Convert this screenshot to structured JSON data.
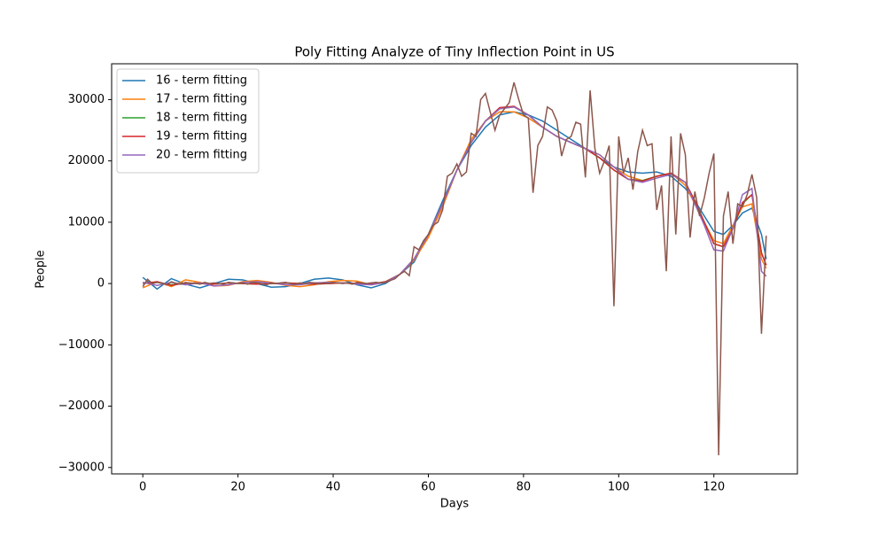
{
  "chart_data": {
    "type": "line",
    "title": "Poly Fitting Analyze of Tiny Inflection Point in US",
    "x_label": "Days",
    "y_label": "People",
    "x": [
      0,
      3,
      6,
      9,
      12,
      15,
      18,
      21,
      24,
      27,
      30,
      33,
      36,
      39,
      42,
      45,
      48,
      51,
      54,
      57,
      60,
      63,
      66,
      69,
      72,
      75,
      78,
      81,
      84,
      87,
      90,
      93,
      96,
      99,
      102,
      105,
      108,
      111,
      114,
      116,
      118,
      120,
      122,
      124,
      126,
      128,
      130,
      131
    ],
    "series": [
      {
        "name": "16 - term fitting",
        "color": "#1f77b4",
        "values": [
          1000,
          -900,
          800,
          -100,
          -700,
          0,
          700,
          600,
          0,
          -600,
          -500,
          0,
          700,
          900,
          600,
          -200,
          -700,
          0,
          1500,
          3500,
          8000,
          13500,
          18500,
          22500,
          25500,
          27500,
          28000,
          27500,
          26500,
          25000,
          23500,
          22000,
          20500,
          19000,
          18200,
          18000,
          18200,
          17500,
          15500,
          13500,
          11000,
          8500,
          8000,
          9500,
          11500,
          12300,
          8000,
          4000
        ]
      },
      {
        "name": "17 - term fitting",
        "color": "#ff7f0e",
        "values": [
          -700,
          300,
          -500,
          600,
          200,
          -400,
          -300,
          300,
          500,
          200,
          -300,
          -500,
          -200,
          300,
          500,
          400,
          -200,
          200,
          1500,
          3800,
          7500,
          12500,
          18500,
          23500,
          26500,
          28000,
          28000,
          27000,
          25500,
          24000,
          23000,
          22000,
          21000,
          19000,
          17500,
          16800,
          17500,
          18000,
          16000,
          13000,
          10000,
          7000,
          6500,
          9500,
          12500,
          13000,
          4000,
          2500
        ]
      },
      {
        "name": "18 - term fitting",
        "color": "#2ca02c",
        "values": [
          100,
          200,
          -200,
          100,
          0,
          -100,
          100,
          0,
          -100,
          0,
          100,
          0,
          -100,
          0,
          100,
          0,
          -100,
          300,
          1500,
          4000,
          8000,
          13000,
          18500,
          23000,
          26500,
          28500,
          28800,
          27500,
          25500,
          24000,
          23000,
          22000,
          20500,
          18500,
          17000,
          16800,
          17500,
          18000,
          16500,
          13500,
          10000,
          6500,
          6000,
          9000,
          13000,
          14500,
          5000,
          3000
        ]
      },
      {
        "name": "19 - term fitting",
        "color": "#d62728",
        "values": [
          0,
          300,
          -300,
          100,
          0,
          -100,
          100,
          0,
          -100,
          0,
          100,
          0,
          -100,
          0,
          100,
          0,
          -100,
          300,
          1500,
          4000,
          8000,
          13000,
          18500,
          23000,
          26500,
          28700,
          28900,
          27500,
          25500,
          24000,
          23000,
          22000,
          20500,
          18500,
          17000,
          16700,
          17500,
          18000,
          16500,
          13500,
          10000,
          6500,
          6000,
          9000,
          13200,
          14500,
          5000,
          3000
        ]
      },
      {
        "name": "20 - term fitting",
        "color": "#9467bd",
        "values": [
          200,
          -300,
          200,
          -200,
          100,
          -400,
          -200,
          200,
          300,
          100,
          -200,
          -200,
          100,
          200,
          100,
          -100,
          -200,
          200,
          1500,
          4000,
          8000,
          13000,
          18500,
          23000,
          26500,
          28500,
          28800,
          27500,
          25500,
          24000,
          23000,
          22000,
          21000,
          19000,
          17000,
          16500,
          17200,
          17800,
          16500,
          13000,
          9500,
          5500,
          5300,
          9000,
          14500,
          15500,
          2000,
          1200
        ]
      },
      {
        "color": "#8c564b",
        "x": [
          0,
          1,
          2,
          3,
          4,
          5,
          6,
          7,
          8,
          9,
          10,
          11,
          12,
          13,
          14,
          15,
          16,
          17,
          18,
          19,
          20,
          21,
          22,
          23,
          24,
          25,
          26,
          27,
          28,
          29,
          30,
          31,
          32,
          33,
          34,
          35,
          36,
          37,
          38,
          39,
          40,
          41,
          42,
          43,
          44,
          45,
          46,
          47,
          48,
          49,
          50,
          51,
          52,
          53,
          54,
          55,
          56,
          57,
          58,
          59,
          60,
          61,
          62,
          63,
          64,
          65,
          66,
          67,
          68,
          69,
          70,
          71,
          72,
          73,
          74,
          75,
          76,
          77,
          78,
          79,
          80,
          81,
          82,
          83,
          84,
          85,
          86,
          87,
          88,
          89,
          90,
          91,
          92,
          93,
          94,
          95,
          96,
          97,
          98,
          99,
          100,
          101,
          102,
          103,
          104,
          105,
          106,
          107,
          108,
          109,
          110,
          111,
          112,
          113,
          114,
          115,
          116,
          117,
          118,
          119,
          120,
          121,
          122,
          123,
          124,
          125,
          126,
          127,
          128,
          129,
          130,
          131
        ],
        "values": [
          -500,
          700,
          0,
          200,
          100,
          -200,
          300,
          0,
          -100,
          200,
          0,
          100,
          -100,
          200,
          0,
          100,
          0,
          -100,
          200,
          100,
          0,
          100,
          -100,
          200,
          100,
          0,
          -200,
          100,
          0,
          100,
          200,
          0,
          -100,
          100,
          0,
          200,
          100,
          0,
          100,
          0,
          200,
          100,
          0,
          100,
          -100,
          200,
          100,
          0,
          100,
          200,
          100,
          200,
          500,
          800,
          1500,
          2000,
          1300,
          6000,
          5500,
          7000,
          8000,
          9500,
          10000,
          12000,
          17500,
          18000,
          19500,
          17500,
          18200,
          24500,
          24000,
          30000,
          31000,
          28000,
          25000,
          27500,
          28500,
          29500,
          32800,
          30000,
          27500,
          27000,
          14800,
          22500,
          24000,
          28800,
          28300,
          26500,
          20800,
          23500,
          24000,
          26300,
          26000,
          17300,
          31500,
          22000,
          18000,
          20000,
          22500,
          -3700,
          24000,
          18000,
          20500,
          15300,
          21500,
          25000,
          22500,
          22800,
          12000,
          16000,
          2000,
          24000,
          8000,
          24500,
          21000,
          7500,
          15000,
          11000,
          14000,
          18000,
          21200,
          -28000,
          11000,
          15000,
          6500,
          13000,
          12500,
          14500,
          17800,
          14000,
          -8200,
          7800
        ]
      }
    ],
    "xlim": [
      -6.55,
      137.55
    ],
    "xticks": [
      0,
      20,
      40,
      60,
      80,
      100,
      120
    ],
    "ylim": [
      -31040,
      35840
    ],
    "yticks": [
      {
        "value": -30000,
        "label": "−30000"
      },
      {
        "value": -20000,
        "label": "−20000"
      },
      {
        "value": -10000,
        "label": "−10000"
      },
      0,
      10000,
      20000,
      30000
    ],
    "legend": "upper-left"
  }
}
